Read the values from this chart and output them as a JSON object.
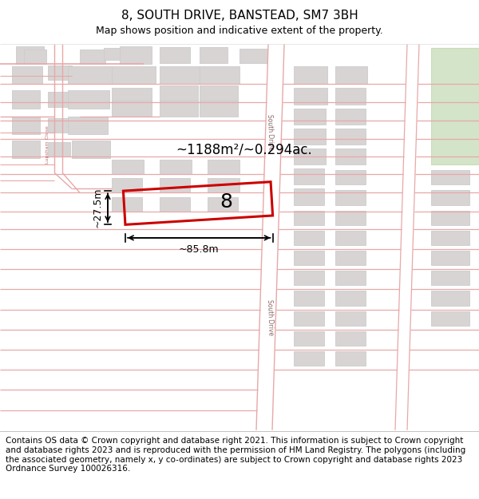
{
  "title": "8, SOUTH DRIVE, BANSTEAD, SM7 3BH",
  "subtitle": "Map shows position and indicative extent of the property.",
  "footer": "Contains OS data © Crown copyright and database right 2021. This information is subject to Crown copyright and database rights 2023 and is reproduced with the permission of HM Land Registry. The polygons (including the associated geometry, namely x, y co-ordinates) are subject to Crown copyright and database rights 2023 Ordnance Survey 100026316.",
  "area_text": "~1188m²/~0.294ac.",
  "property_number": "8",
  "width_label": "~85.8m",
  "height_label": "~27.5m",
  "road_label_left": "Lupsham Close",
  "road_label_mid1": "South Drive",
  "road_label_mid2": "South Drive",
  "bg_color": "#ffffff",
  "map_bg": "#ffffff",
  "road_line_color": "#e8a8a8",
  "road_border_color": "#cccccc",
  "building_fill": "#d8d4d4",
  "building_edge": "#cccccc",
  "highlight_color": "#cc0000",
  "green_fill": "#d4e4c8",
  "green_edge": "#c8ddb8",
  "title_fontsize": 11,
  "subtitle_fontsize": 9,
  "footer_fontsize": 7.5
}
